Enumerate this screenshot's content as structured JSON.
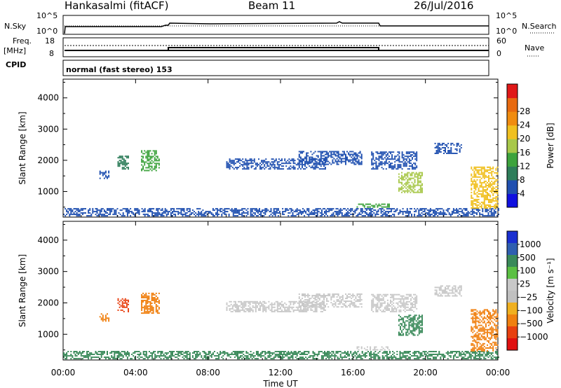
{
  "header": {
    "station": "Hankasalmi (fitACF)",
    "beam": "Beam 11",
    "date": "26/Jul/2016"
  },
  "status_panels": {
    "nsky_label": "N.Sky",
    "nsky_ticks": [
      "10^5",
      "10^0"
    ],
    "nsearch_label": "N.Search",
    "nsearch_ticks": [
      "10^5",
      "10^0"
    ],
    "freq_label_1": "Freq.",
    "freq_label_2": "[MHz]",
    "freq_ticks": [
      "18",
      "8"
    ],
    "nave_label": "Nave",
    "nave_ticks": [
      "60",
      "0"
    ],
    "cpid_label": "CPID",
    "cpid_value": "normal (fast stereo) 153"
  },
  "chart_data": [
    {
      "type": "heatmap",
      "name": "power",
      "ylabel": "Slant Range [km]",
      "ylim": [
        180,
        4600
      ],
      "yticks": [
        1000,
        2000,
        3000,
        4000
      ],
      "xlim": [
        0,
        24
      ],
      "xtick_labels": [
        "00:00",
        "04:00",
        "08:00",
        "12:00",
        "16:00",
        "20:00",
        "00:00"
      ],
      "colorbar": {
        "label": "Power [dB]",
        "ticks": [
          "4",
          "8",
          "12",
          "16",
          "20",
          "24",
          "28"
        ],
        "colors": [
          "#1010e0",
          "#2050b0",
          "#2e7d5a",
          "#3da33d",
          "#a8c84a",
          "#f0c020",
          "#f08c10",
          "#e86a10",
          "#e01818"
        ]
      },
      "echo_regions": [
        {
          "t0": 0.0,
          "t1": 24.0,
          "r0": 200,
          "r1": 450,
          "value_db": 6,
          "note_color": "#1f3fb8"
        },
        {
          "t0": 2.0,
          "t1": 2.5,
          "r0": 1400,
          "r1": 1650,
          "value_db": 4
        },
        {
          "t0": 3.0,
          "t1": 3.6,
          "r0": 1700,
          "r1": 2150,
          "value_db": 8
        },
        {
          "t0": 4.3,
          "t1": 5.3,
          "r0": 1650,
          "r1": 2300,
          "value_db": 12
        },
        {
          "t0": 9.0,
          "t1": 14.5,
          "r0": 1700,
          "r1": 2050,
          "value_db": 6
        },
        {
          "t0": 13.0,
          "t1": 16.5,
          "r0": 1850,
          "r1": 2300,
          "value_db": 5
        },
        {
          "t0": 16.2,
          "t1": 18.0,
          "r0": 480,
          "r1": 580,
          "value_db": 14
        },
        {
          "t0": 17.0,
          "t1": 19.5,
          "r0": 1700,
          "r1": 2250,
          "value_db": 6
        },
        {
          "t0": 18.5,
          "t1": 19.8,
          "r0": 950,
          "r1": 1600,
          "value_db": 18
        },
        {
          "t0": 20.5,
          "t1": 22.0,
          "r0": 2200,
          "r1": 2550,
          "value_db": 5
        },
        {
          "t0": 22.5,
          "t1": 24.0,
          "r0": 450,
          "r1": 1800,
          "value_db": 20
        }
      ]
    },
    {
      "type": "heatmap",
      "name": "velocity",
      "ylabel": "Slant Range [km]",
      "ylim": [
        180,
        4600
      ],
      "yticks": [
        1000,
        2000,
        3000,
        4000
      ],
      "xlim": [
        0,
        24
      ],
      "xtick_labels": [
        "00:00",
        "04:00",
        "08:00",
        "12:00",
        "16:00",
        "20:00",
        "00:00"
      ],
      "xlabel": "Time UT",
      "colorbar": {
        "label": "Velocity [m s⁻¹]",
        "ticks": [
          "1000",
          "500",
          "100",
          "25",
          "−25",
          "−100",
          "−500",
          "−1000"
        ],
        "colors": [
          "#1a2fd0",
          "#2f5fb0",
          "#3a8a5a",
          "#5cc043",
          "#c8c8c8",
          "#c0c0c0",
          "#f0b020",
          "#f08010",
          "#e84010",
          "#e01010"
        ]
      },
      "echo_regions": [
        {
          "t0": 0.0,
          "t1": 24.0,
          "r0": 200,
          "r1": 450,
          "value_ms": 50
        },
        {
          "t0": 2.0,
          "t1": 2.5,
          "r0": 1400,
          "r1": 1650,
          "value_ms": -400
        },
        {
          "t0": 3.0,
          "t1": 3.6,
          "r0": 1700,
          "r1": 2150,
          "value_ms": -500
        },
        {
          "t0": 4.3,
          "t1": 5.3,
          "r0": 1650,
          "r1": 2300,
          "value_ms": -300
        },
        {
          "t0": 9.0,
          "t1": 14.5,
          "r0": 1700,
          "r1": 2050,
          "value_ms": 0
        },
        {
          "t0": 13.0,
          "t1": 16.5,
          "r0": 1850,
          "r1": 2300,
          "value_ms": 0
        },
        {
          "t0": 16.2,
          "t1": 18.0,
          "r0": 480,
          "r1": 580,
          "value_ms": 0
        },
        {
          "t0": 17.0,
          "t1": 19.5,
          "r0": 1700,
          "r1": 2250,
          "value_ms": 0
        },
        {
          "t0": 18.5,
          "t1": 19.8,
          "r0": 950,
          "r1": 1600,
          "value_ms": 100
        },
        {
          "t0": 20.5,
          "t1": 22.0,
          "r0": 2200,
          "r1": 2550,
          "value_ms": 0
        },
        {
          "t0": 22.5,
          "t1": 24.0,
          "r0": 450,
          "r1": 1800,
          "value_ms": -300
        }
      ]
    }
  ]
}
